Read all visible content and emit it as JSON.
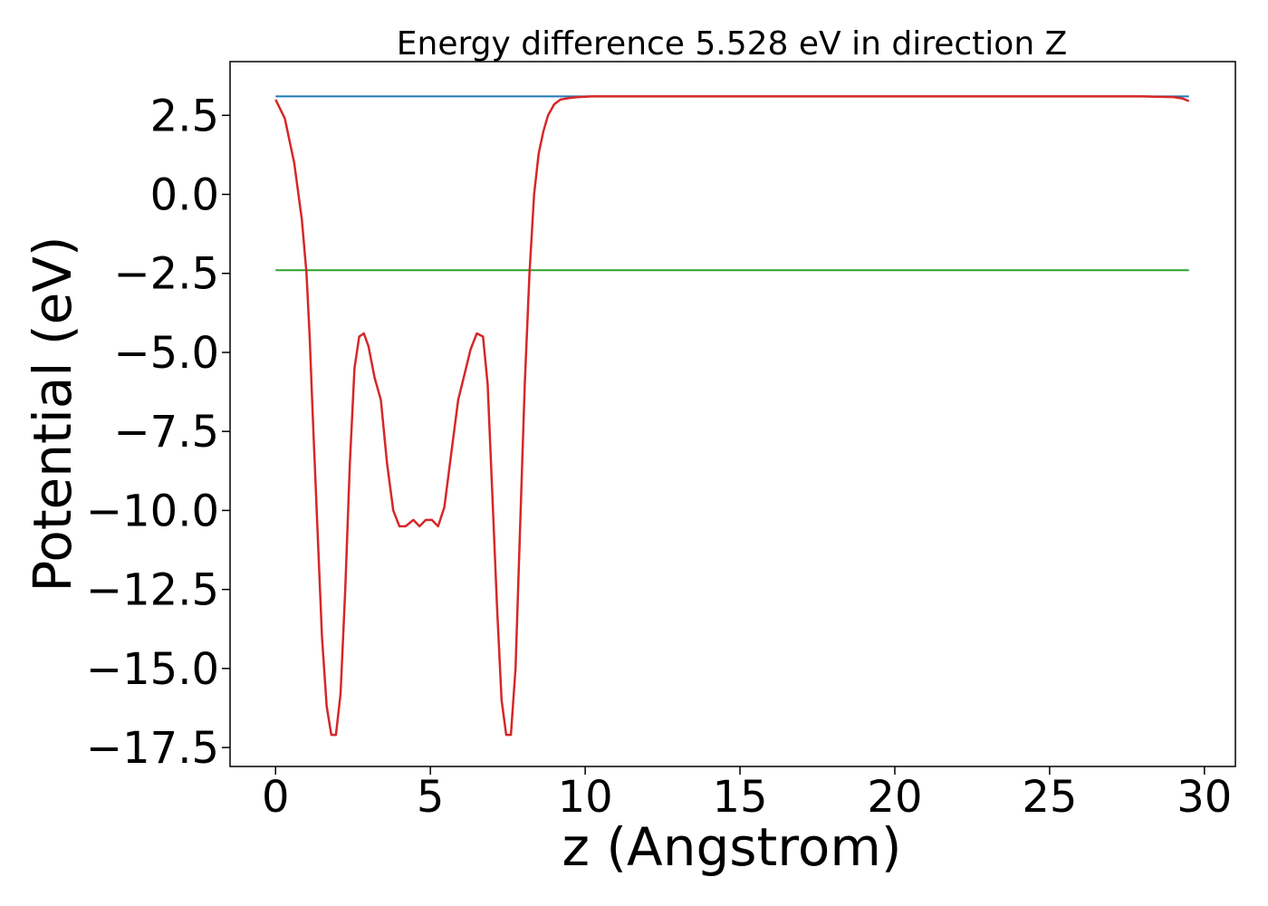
{
  "chart_data": {
    "type": "line",
    "title": "Energy difference 5.528 eV in direction Z",
    "xlabel": "z (Angstrom)",
    "ylabel": "Potential (eV)",
    "xlim": [
      -1.47,
      31.0
    ],
    "ylim": [
      -18.1,
      4.2
    ],
    "xticks": [
      0,
      5,
      10,
      15,
      20,
      25,
      30
    ],
    "xtick_labels": [
      "0",
      "5",
      "10",
      "15",
      "20",
      "25",
      "30"
    ],
    "yticks": [
      2.5,
      0.0,
      -2.5,
      -5.0,
      -7.5,
      -10.0,
      -12.5,
      -15.0,
      -17.5
    ],
    "ytick_labels": [
      "2.5",
      "0.0",
      "−2.5",
      "−5.0",
      "−7.5",
      "−10.0",
      "−12.5",
      "−15.0",
      "−17.5"
    ],
    "grid": false,
    "legend": "none",
    "series": [
      {
        "color": "#1f77b4",
        "x": [
          0,
          29.5
        ],
        "y": [
          3.1,
          3.1
        ]
      },
      {
        "color": "#2ca02c",
        "x": [
          0,
          29.5
        ],
        "y": [
          -2.4,
          -2.4
        ]
      },
      {
        "color": "#d62728",
        "x": [
          0.0,
          0.3,
          0.6,
          0.85,
          1.0,
          1.1,
          1.2,
          1.35,
          1.5,
          1.65,
          1.8,
          1.95,
          2.1,
          2.25,
          2.4,
          2.55,
          2.7,
          2.85,
          3.0,
          3.2,
          3.4,
          3.6,
          3.8,
          4.0,
          4.2,
          4.45,
          4.65,
          4.85,
          5.05,
          5.25,
          5.45,
          5.7,
          5.9,
          6.1,
          6.3,
          6.5,
          6.7,
          6.85,
          7.0,
          7.15,
          7.3,
          7.45,
          7.6,
          7.75,
          7.9,
          8.05,
          8.2,
          8.35,
          8.5,
          8.65,
          8.8,
          9.0,
          9.2,
          9.5,
          9.8,
          10.2,
          10.8,
          12.0,
          15.0,
          20.0,
          25.0,
          28.0,
          29.0,
          29.3,
          29.5
        ],
        "y": [
          3.0,
          2.4,
          1.0,
          -0.8,
          -2.5,
          -4.5,
          -7.0,
          -10.5,
          -14.0,
          -16.2,
          -17.1,
          -17.1,
          -15.8,
          -12.5,
          -8.5,
          -5.5,
          -4.5,
          -4.4,
          -4.8,
          -5.8,
          -6.5,
          -8.5,
          -10.0,
          -10.5,
          -10.5,
          -10.3,
          -10.5,
          -10.3,
          -10.3,
          -10.5,
          -9.9,
          -8.0,
          -6.5,
          -5.7,
          -4.9,
          -4.4,
          -4.5,
          -6.0,
          -9.5,
          -13.0,
          -16.0,
          -17.1,
          -17.1,
          -15.0,
          -10.5,
          -6.0,
          -2.5,
          0.0,
          1.3,
          2.0,
          2.5,
          2.85,
          3.0,
          3.05,
          3.08,
          3.1,
          3.1,
          3.1,
          3.1,
          3.1,
          3.1,
          3.1,
          3.08,
          3.03,
          2.95
        ]
      }
    ]
  }
}
